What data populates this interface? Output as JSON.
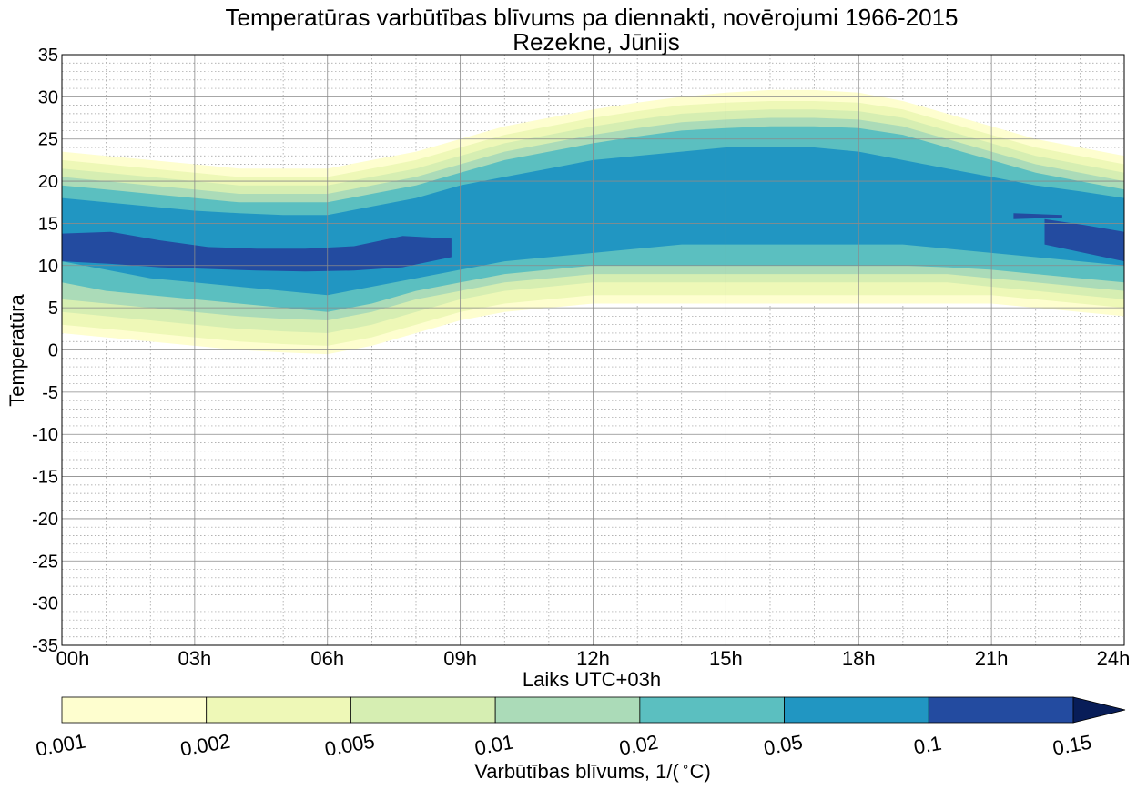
{
  "chart_data": {
    "type": "contourf",
    "title": "Temperatūras varbūtības blīvums pa diennakti, novērojumi 1966-2015",
    "subtitle": "Rezekne, Jūnijs",
    "xlabel": "Laiks UTC+03h",
    "ylabel": "Temperatūra",
    "x_ticks": [
      "00h",
      "03h",
      "06h",
      "09h",
      "12h",
      "15h",
      "18h",
      "21h",
      "24h"
    ],
    "x_range_hours": [
      0,
      24
    ],
    "y_ticks": [
      "35",
      "30",
      "25",
      "20",
      "15",
      "10",
      "5",
      "0",
      "-5",
      "-10",
      "-15",
      "-20",
      "-25",
      "-30",
      "-35"
    ],
    "y_range": [
      -35,
      35
    ],
    "grid": "major solid, minor dotted",
    "colorbar": {
      "label": "Varbūtības blīvums, 1/($^\\circ$C)",
      "label_display": "Varbūtības blīvums, 1/(",
      "label_degree": "∘",
      "label_unit": "C)",
      "tick_labels": [
        "0.001",
        "0.002",
        "0.005",
        "0.01",
        "0.02",
        "0.05",
        "0.1",
        "0.15"
      ],
      "colors": [
        "#FEFECF",
        "#EEF8B7",
        "#D6EEB2",
        "#ABDBB8",
        "#5BBFC0",
        "#2196C2",
        "#234BA0",
        "#081D58"
      ],
      "extend": "max"
    },
    "hours": [
      0,
      1,
      2,
      3,
      4,
      5,
      6,
      7,
      8,
      9,
      10,
      11,
      12,
      13,
      14,
      15,
      16,
      17,
      18,
      19,
      20,
      21,
      22,
      23,
      24
    ],
    "levels": [
      {
        "threshold": "0.001",
        "upper": [
          23.5,
          23.0,
          22.5,
          22.0,
          21.5,
          21.5,
          21.5,
          22.5,
          23.5,
          25.0,
          26.5,
          27.5,
          28.5,
          29.3,
          30.0,
          30.5,
          30.8,
          30.8,
          30.5,
          29.5,
          28.0,
          26.5,
          25.0,
          24.0,
          23.0
        ],
        "lower": [
          2.0,
          1.5,
          1.0,
          0.5,
          0.0,
          -0.3,
          -0.5,
          0.5,
          2.0,
          3.5,
          4.5,
          5.0,
          5.5,
          5.5,
          5.5,
          5.5,
          5.5,
          5.5,
          5.5,
          5.5,
          5.5,
          5.5,
          5.0,
          4.5,
          4.0
        ]
      },
      {
        "threshold": "0.002",
        "upper": [
          22.5,
          22.0,
          21.5,
          21.0,
          20.5,
          20.5,
          20.5,
          21.5,
          22.5,
          24.0,
          25.5,
          26.5,
          27.5,
          28.3,
          29.0,
          29.3,
          29.5,
          29.5,
          29.3,
          28.5,
          27.0,
          25.5,
          24.0,
          23.0,
          22.0
        ],
        "lower": [
          3.0,
          2.5,
          2.0,
          1.5,
          1.0,
          0.7,
          0.5,
          1.5,
          3.0,
          4.5,
          5.5,
          6.0,
          6.5,
          6.5,
          6.5,
          6.5,
          6.5,
          6.5,
          6.5,
          6.5,
          6.5,
          6.5,
          6.0,
          5.5,
          5.0
        ]
      },
      {
        "threshold": "0.005",
        "upper": [
          21.5,
          21.0,
          20.5,
          20.0,
          19.5,
          19.5,
          19.5,
          20.5,
          21.5,
          23.0,
          24.5,
          25.5,
          26.5,
          27.3,
          28.0,
          28.3,
          28.5,
          28.5,
          28.3,
          27.5,
          26.0,
          24.5,
          23.0,
          22.0,
          21.0
        ],
        "lower": [
          4.5,
          4.0,
          3.5,
          3.0,
          2.5,
          2.2,
          2.0,
          3.0,
          4.5,
          6.0,
          7.0,
          7.5,
          8.0,
          8.0,
          8.0,
          8.0,
          8.0,
          8.0,
          8.0,
          8.0,
          8.0,
          7.5,
          7.0,
          6.5,
          6.0
        ]
      },
      {
        "threshold": "0.01",
        "upper": [
          20.5,
          20.0,
          19.5,
          19.0,
          18.5,
          18.5,
          18.5,
          19.5,
          20.5,
          22.0,
          23.5,
          24.5,
          25.5,
          26.3,
          27.0,
          27.3,
          27.5,
          27.5,
          27.3,
          26.5,
          25.0,
          23.5,
          22.0,
          21.0,
          20.0
        ],
        "lower": [
          6.0,
          5.5,
          5.0,
          4.5,
          4.0,
          3.7,
          3.5,
          4.5,
          6.0,
          7.0,
          8.0,
          8.5,
          9.0,
          9.0,
          9.0,
          9.0,
          9.0,
          9.0,
          9.0,
          9.0,
          9.0,
          8.5,
          8.0,
          7.5,
          7.0
        ]
      },
      {
        "threshold": "0.02",
        "upper": [
          19.5,
          19.0,
          18.5,
          18.0,
          17.5,
          17.5,
          17.5,
          18.5,
          19.5,
          21.0,
          22.5,
          23.5,
          24.5,
          25.3,
          26.0,
          26.3,
          26.5,
          26.5,
          26.3,
          25.5,
          24.0,
          22.5,
          21.0,
          20.0,
          19.0
        ],
        "lower": [
          8.0,
          7.0,
          6.5,
          6.0,
          5.5,
          5.0,
          4.5,
          5.5,
          7.0,
          8.0,
          9.0,
          9.5,
          10.0,
          10.0,
          10.0,
          10.0,
          10.0,
          10.0,
          10.0,
          10.0,
          9.8,
          9.5,
          9.0,
          8.5,
          8.0
        ]
      },
      {
        "threshold": "0.05",
        "upper": [
          18.0,
          17.5,
          17.0,
          16.5,
          16.2,
          16.0,
          16.0,
          17.0,
          18.0,
          19.5,
          20.5,
          21.5,
          22.5,
          23.0,
          23.5,
          24.0,
          24.0,
          24.0,
          23.5,
          22.5,
          21.5,
          20.5,
          19.5,
          18.8,
          18.0
        ],
        "lower": [
          10.5,
          9.5,
          8.5,
          8.0,
          7.5,
          7.0,
          6.5,
          7.5,
          8.5,
          9.5,
          10.5,
          11.0,
          11.5,
          12.0,
          12.5,
          12.5,
          12.5,
          12.5,
          12.5,
          12.5,
          12.0,
          11.5,
          11.0,
          10.5,
          10.0
        ]
      }
    ],
    "top_regions": [
      {
        "threshold": "0.1",
        "hour_range": [
          0,
          8.8
        ],
        "upper": [
          13.8,
          14.0,
          13.0,
          12.2,
          12.0,
          12.0,
          12.3,
          13.5,
          13.2
        ],
        "lower": [
          10.5,
          10.2,
          9.8,
          9.6,
          9.4,
          9.3,
          9.4,
          9.8,
          11.0
        ]
      },
      {
        "threshold": "0.1",
        "hour_range": [
          21.5,
          22.6
        ],
        "upper": [
          16.2,
          16.0
        ],
        "lower": [
          15.5,
          15.7
        ]
      },
      {
        "threshold": "0.1",
        "hour_range": [
          22.2,
          24
        ],
        "upper": [
          15.5,
          14.8,
          14.0
        ],
        "lower": [
          12.5,
          11.5,
          10.5
        ]
      }
    ]
  }
}
